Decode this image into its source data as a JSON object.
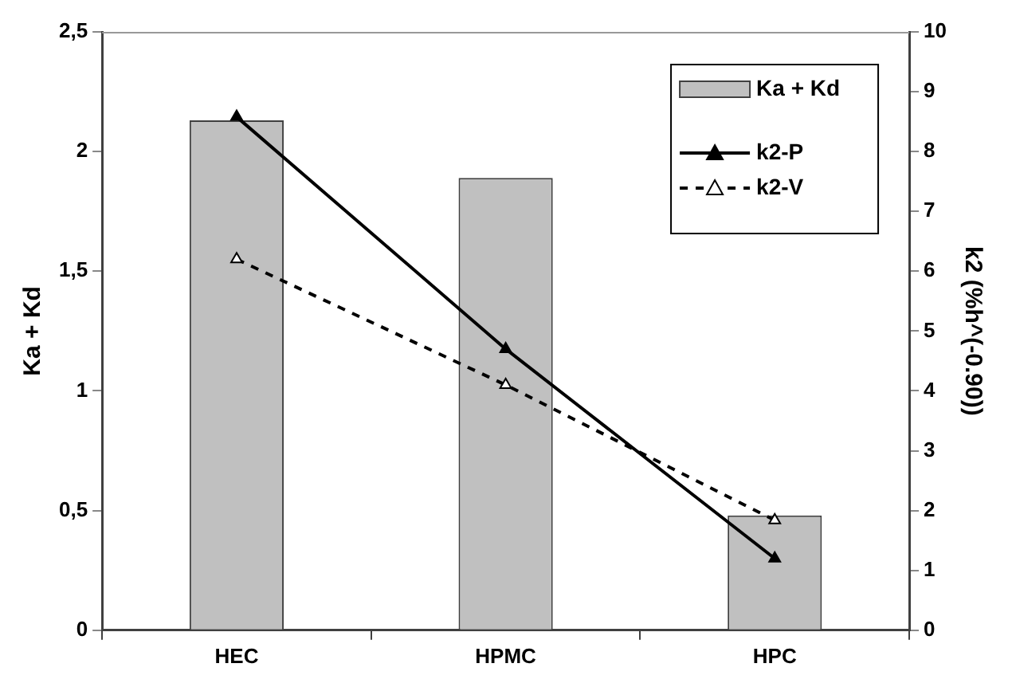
{
  "chart_data": {
    "type": "bar",
    "categories": [
      "HEC",
      "HPMC",
      "HPC"
    ],
    "ylabel": "Ka + Kd",
    "y2label": "k2 (%h^(-0.90))",
    "series": [
      {
        "name": "Ka + Kd",
        "color": "#c0c0c0",
        "values": [
          2.13,
          1.89,
          0.48
        ]
      },
      {
        "name": "k2-P",
        "type": "line",
        "axis": "y2",
        "color": "#000000",
        "line_style": "solid",
        "marker": "triangle",
        "values": [
          8.58,
          4.7,
          1.2
        ]
      },
      {
        "name": "k2-V",
        "type": "line",
        "axis": "y2",
        "color": "#000000",
        "line_style": "dashed",
        "marker": "triangle",
        "values": [
          6.2,
          4.1,
          1.84
        ]
      }
    ],
    "ylim": [
      0,
      2.5
    ],
    "yticks": [
      0,
      {
        "value": 0.5,
        "label": "0,5"
      },
      1,
      {
        "value": 1.5,
        "label": "1,5"
      },
      2,
      {
        "value": 2.5,
        "label": "2,5"
      }
    ],
    "y2lim": [
      0,
      10
    ],
    "y2ticks": [
      0,
      1,
      2,
      3,
      4,
      5,
      6,
      7,
      8,
      9,
      10
    ],
    "grid": false,
    "legend": "top right"
  }
}
